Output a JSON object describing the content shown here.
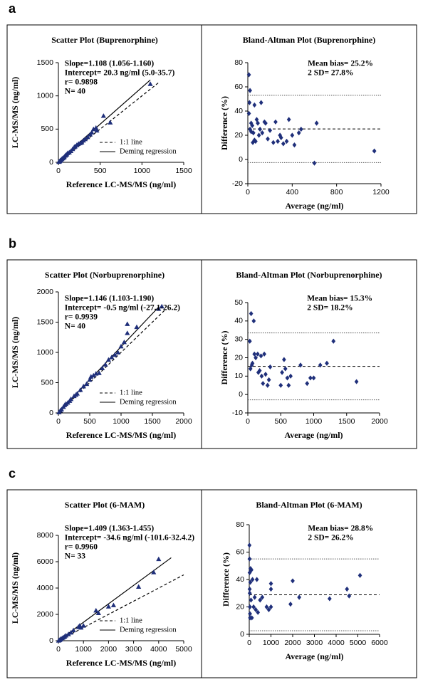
{
  "panel_labels": [
    "a",
    "b",
    "c"
  ],
  "chart_data": [
    {
      "type": "scatter",
      "title": "Scatter Plot (Buprenorphine)",
      "xlabel": "Reference LC-MS/MS (ng/ml)",
      "ylabel": "LC-MS/MS (ng/ml)",
      "annotations": [
        "Slope=1.108 (1.056-1.160)",
        "Intercept= 20.3 ng/ml (5.0-35.7)",
        "r= 0.9898",
        "N= 40"
      ],
      "xlim": [
        0,
        1500
      ],
      "ylim": [
        0,
        1500
      ],
      "xticks": [
        0,
        500,
        1000,
        1500
      ],
      "yticks": [
        0,
        500,
        1000,
        1500
      ],
      "marker": "triangle",
      "color": "#1f2f7a",
      "legend": "lower right",
      "x": [
        5,
        10,
        15,
        20,
        25,
        30,
        40,
        50,
        60,
        70,
        80,
        90,
        100,
        110,
        130,
        150,
        170,
        190,
        200,
        220,
        240,
        260,
        280,
        300,
        320,
        350,
        380,
        400,
        420,
        450,
        460,
        540,
        620,
        1100
      ],
      "values": [
        8,
        12,
        18,
        25,
        30,
        35,
        50,
        60,
        70,
        80,
        100,
        110,
        120,
        140,
        150,
        170,
        200,
        230,
        240,
        260,
        280,
        290,
        300,
        330,
        350,
        380,
        420,
        450,
        500,
        520,
        480,
        700,
        600,
        1180
      ],
      "lines": [
        {
          "name": "1:1 line",
          "style": "dashed",
          "x": [
            0,
            1200
          ],
          "values": [
            0,
            1200
          ]
        },
        {
          "name": "Deming regression",
          "style": "solid",
          "x": [
            0,
            1100
          ],
          "values": [
            20,
            1239
          ]
        }
      ]
    },
    {
      "type": "scatter",
      "title": "Bland-Altman Plot (Buprenorphine)",
      "xlabel": "Average (ng/ml)",
      "ylabel": "Difference (%)",
      "annotations": [
        "Mean bias= 25.2%",
        "2 SD= 27.8%"
      ],
      "xlim": [
        0,
        1200
      ],
      "ylim": [
        -20,
        80
      ],
      "xticks": [
        0,
        400,
        800,
        1200
      ],
      "yticks": [
        -20,
        0,
        20,
        40,
        60,
        80
      ],
      "marker": "diamond",
      "color": "#1f2f7a",
      "x": [
        10,
        20,
        15,
        10,
        30,
        40,
        20,
        30,
        50,
        60,
        70,
        80,
        90,
        100,
        110,
        120,
        150,
        180,
        200,
        230,
        250,
        270,
        290,
        300,
        320,
        350,
        370,
        400,
        420,
        460,
        480,
        600,
        620,
        1140,
        45,
        130,
        60,
        160
      ],
      "values": [
        70,
        57,
        47,
        38,
        30,
        28,
        25,
        23,
        22,
        45,
        15,
        33,
        30,
        20,
        25,
        47,
        31,
        17,
        24,
        14,
        31,
        15,
        20,
        18,
        13,
        15,
        33,
        20,
        12,
        22,
        25,
        -3,
        30,
        7,
        14,
        22,
        16,
        30
      ],
      "hlines": [
        {
          "value": 53.0,
          "style": "dotted"
        },
        {
          "value": 25.2,
          "style": "dashed"
        },
        {
          "value": -2.6,
          "style": "dotted"
        }
      ]
    },
    {
      "type": "scatter",
      "title": "Scatter Plot (Norbuprenorphine)",
      "xlabel": "Reference LC-MS/MS (ng/ml)",
      "ylabel": "LC-MS/MS (ng/ml)",
      "annotations": [
        "Slope=1.146 (1.103-1.190)",
        "Intercept= -0.5 ng/ml (-27.1-26.2)",
        "r= 0.9939",
        "N= 40"
      ],
      "xlim": [
        0,
        2000
      ],
      "ylim": [
        0,
        2000
      ],
      "xticks": [
        0,
        500,
        1000,
        1500,
        2000
      ],
      "yticks": [
        0,
        500,
        1000,
        1500,
        2000
      ],
      "marker": "triangle",
      "color": "#1f2f7a",
      "legend": "lower right",
      "x": [
        10,
        30,
        50,
        80,
        100,
        120,
        150,
        180,
        200,
        250,
        280,
        300,
        350,
        400,
        450,
        500,
        520,
        560,
        600,
        650,
        700,
        750,
        800,
        850,
        900,
        950,
        1000,
        1050,
        1100,
        1100,
        1250,
        1600,
        1650
      ],
      "values": [
        12,
        40,
        60,
        100,
        130,
        150,
        170,
        200,
        230,
        280,
        300,
        320,
        380,
        440,
        480,
        550,
        600,
        620,
        650,
        660,
        740,
        800,
        880,
        920,
        960,
        1000,
        1100,
        1170,
        1320,
        1470,
        1420,
        1720,
        1760
      ],
      "lines": [
        {
          "name": "1:1 line",
          "style": "dashed",
          "x": [
            0,
            1700
          ],
          "values": [
            0,
            1700
          ]
        },
        {
          "name": "Deming regression",
          "style": "solid",
          "x": [
            0,
            1600
          ],
          "values": [
            0,
            1750
          ]
        }
      ]
    },
    {
      "type": "scatter",
      "title": "Bland-Altman Plot (Norbuprenorphine)",
      "xlabel": "Average (ng/ml)",
      "ylabel": "Difference (%)",
      "annotations": [
        "Mean bias= 15.3%",
        "2 SD= 18.2%"
      ],
      "xlim": [
        0,
        2000
      ],
      "ylim": [
        -10,
        50
      ],
      "xticks": [
        0,
        500,
        1000,
        1500,
        2000
      ],
      "yticks": [
        -10,
        0,
        10,
        20,
        30,
        40,
        50
      ],
      "marker": "diamond",
      "color": "#1f2f7a",
      "x": [
        30,
        50,
        70,
        90,
        100,
        120,
        150,
        180,
        200,
        210,
        230,
        250,
        270,
        300,
        320,
        340,
        500,
        520,
        550,
        570,
        600,
        620,
        650,
        800,
        900,
        950,
        1000,
        1100,
        1200,
        1300,
        1650,
        40,
        60,
        160
      ],
      "values": [
        29,
        44,
        17,
        40,
        22,
        20,
        22,
        13,
        21,
        10,
        6,
        22,
        11,
        5,
        8,
        15,
        5,
        12,
        19,
        14,
        9,
        5,
        10,
        16,
        6,
        9,
        9,
        16,
        17,
        29,
        7,
        14,
        16,
        12
      ],
      "hlines": [
        {
          "value": 33.5,
          "style": "dotted"
        },
        {
          "value": 15.3,
          "style": "dashed"
        },
        {
          "value": -2.9,
          "style": "dotted"
        }
      ]
    },
    {
      "type": "scatter",
      "title": "Scatter Plot (6-MAM)",
      "xlabel": "Reference LC-MS/MS (ng/ml)",
      "ylabel": "LC-MS/MS (ng/ml)",
      "annotations": [
        "Slope=1.409 (1.363-1.455)",
        "Intercept= -34.6 ng/ml (-101.6-32.4.2)",
        "r= 0.9960",
        "N= 33"
      ],
      "xlim": [
        0,
        5000
      ],
      "ylim": [
        0,
        8000
      ],
      "xticks": [
        0,
        1000,
        2000,
        3000,
        4000,
        5000
      ],
      "yticks": [
        0,
        2000,
        4000,
        6000,
        8000
      ],
      "marker": "triangle",
      "color": "#1f2f7a",
      "legend": "lower right",
      "x": [
        10,
        30,
        50,
        80,
        100,
        150,
        200,
        250,
        300,
        400,
        500,
        600,
        800,
        850,
        900,
        1000,
        1500,
        1600,
        2000,
        2200,
        3200,
        3800,
        4000
      ],
      "values": [
        15,
        40,
        60,
        100,
        140,
        200,
        260,
        320,
        400,
        500,
        620,
        800,
        1050,
        1150,
        1000,
        1150,
        2300,
        2100,
        2600,
        2700,
        4100,
        5200,
        6200
      ],
      "lines": [
        {
          "name": "1:1 line",
          "style": "dashed",
          "x": [
            0,
            5000
          ],
          "values": [
            0,
            5000
          ]
        },
        {
          "name": "Deming regression",
          "style": "solid",
          "x": [
            0,
            4500
          ],
          "values": [
            0,
            6300
          ]
        }
      ]
    },
    {
      "type": "scatter",
      "title": "Bland-Altman Plot (6-MAM)",
      "xlabel": "Average (ng/ml)",
      "ylabel": "Difference (%)",
      "annotations": [
        "Mean bias= 28.8%",
        "2 SD= 26.2%"
      ],
      "xlim": [
        0,
        6000
      ],
      "ylim": [
        0,
        80
      ],
      "xticks": [
        0,
        1000,
        2000,
        3000,
        4000,
        5000,
        6000
      ],
      "yticks": [
        0,
        20,
        40,
        60,
        80
      ],
      "marker": "diamond",
      "color": "#1f2f7a",
      "x": [
        10,
        15,
        20,
        20,
        25,
        30,
        35,
        40,
        50,
        60,
        80,
        100,
        120,
        150,
        200,
        250,
        300,
        350,
        400,
        500,
        600,
        800,
        900,
        1000,
        1000,
        1000,
        1900,
        2000,
        2300,
        3700,
        4500,
        4600,
        5100
      ],
      "values": [
        65,
        55,
        45,
        33,
        30,
        20,
        15,
        12,
        38,
        48,
        25,
        47,
        12,
        40,
        20,
        27,
        18,
        40,
        16,
        25,
        27,
        20,
        18,
        37,
        33,
        20,
        22,
        39,
        27,
        26,
        33,
        28,
        43
      ],
      "hlines": [
        {
          "value": 55.0,
          "style": "dotted"
        },
        {
          "value": 28.8,
          "style": "dashed"
        },
        {
          "value": 2.6,
          "style": "dotted"
        }
      ]
    }
  ]
}
